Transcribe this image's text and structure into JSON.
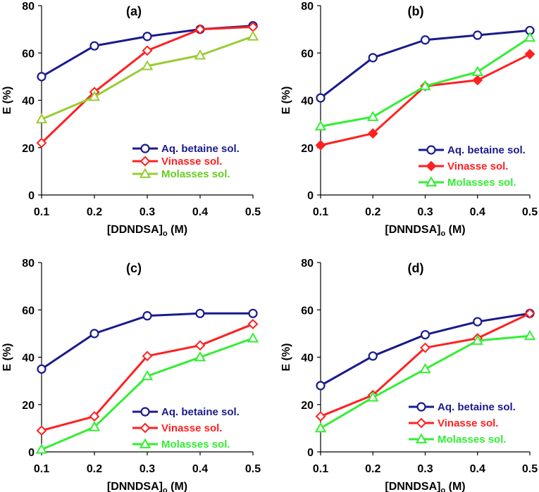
{
  "chart_data": [
    {
      "type": "line",
      "panel_label": "(a)",
      "xlabel_main": "[DDNDSA]",
      "xlabel_sub": "o",
      "xlabel_unit": " (M)",
      "ylabel": "E (%)",
      "x": [
        0.1,
        0.2,
        0.3,
        0.4,
        0.5
      ],
      "x_tick_labels": [
        "0.1",
        "0.2",
        "0.3",
        "0.4",
        "0.5"
      ],
      "xlim": [
        0.1,
        0.5
      ],
      "ylim": [
        0,
        80
      ],
      "y_ticks": [
        0,
        20,
        40,
        60,
        80
      ],
      "grid": false,
      "legend_position": "center-right",
      "series": [
        {
          "name": "Aq. betaine sol.",
          "color": "#1a1a8c",
          "text_color": "#1a1a8c",
          "marker": "circle",
          "values": [
            50,
            63,
            67,
            70,
            71.5
          ]
        },
        {
          "name": "Vinasse sol.",
          "color": "#ff2020",
          "text_color": "#ff2020",
          "marker": "diamond",
          "values": [
            22,
            43.5,
            61,
            70,
            71
          ]
        },
        {
          "name": "Molasses sol.",
          "color": "#99cc33",
          "text_color": "#66cc22",
          "marker": "triangle",
          "values": [
            32,
            41.5,
            54.5,
            59,
            67
          ]
        }
      ]
    },
    {
      "type": "line",
      "panel_label": "(b)",
      "xlabel_main": "[DNNDSA]",
      "xlabel_sub": "o",
      "xlabel_unit": " (M)",
      "ylabel": "E (%)",
      "x": [
        0.1,
        0.2,
        0.3,
        0.4,
        0.5
      ],
      "x_tick_labels": [
        "0.1",
        "0.2",
        "0.3",
        "0.4",
        "0.5"
      ],
      "xlim": [
        0.1,
        0.5
      ],
      "ylim": [
        0,
        80
      ],
      "y_ticks": [
        0,
        20,
        40,
        60,
        80
      ],
      "grid": false,
      "legend_position": "center-right",
      "series": [
        {
          "name": "Aq. betaine sol.",
          "color": "#1a1a8c",
          "text_color": "#1a1a8c",
          "marker": "circle",
          "values": [
            41,
            58,
            65.5,
            67.5,
            69.5
          ]
        },
        {
          "name": "Vinasse sol.",
          "color": "#ff2020",
          "text_color": "#ff2020",
          "marker": "diamond",
          "values": [
            21,
            26,
            46,
            48.5,
            59.5
          ]
        },
        {
          "name": "Molasses sol.",
          "color": "#33ee33",
          "text_color": "#33ee33",
          "marker": "triangle",
          "values": [
            29,
            33,
            46,
            52,
            66.5
          ]
        }
      ]
    },
    {
      "type": "line",
      "panel_label": "(c)",
      "xlabel_main": "[DNNDSA]",
      "xlabel_sub": "o",
      "xlabel_unit": " (M)",
      "ylabel": "E (%)",
      "x": [
        0.1,
        0.2,
        0.3,
        0.4,
        0.5
      ],
      "x_tick_labels": [
        "0.1",
        "0.2",
        "0.3",
        "0.4",
        "0.5"
      ],
      "xlim": [
        0.1,
        0.5
      ],
      "ylim": [
        0,
        80
      ],
      "y_ticks": [
        0,
        20,
        40,
        60,
        80
      ],
      "grid": false,
      "legend_position": "bottom-right",
      "series": [
        {
          "name": "Aq. betaine sol.",
          "color": "#1a1a8c",
          "text_color": "#1a1a8c",
          "marker": "circle",
          "values": [
            35,
            50,
            57.5,
            58.5,
            58.5
          ]
        },
        {
          "name": "Vinasse sol.",
          "color": "#ff2020",
          "text_color": "#ff2020",
          "marker": "diamond",
          "values": [
            9,
            15,
            40.5,
            45,
            54
          ]
        },
        {
          "name": "Molasses sol.",
          "color": "#33ee33",
          "text_color": "#33ee33",
          "marker": "triangle",
          "values": [
            1,
            10.5,
            32,
            40,
            48
          ]
        }
      ]
    },
    {
      "type": "line",
      "panel_label": "(d)",
      "xlabel_main": "[DNNDSA]",
      "xlabel_sub": "o",
      "xlabel_unit": " (M)",
      "ylabel": "E (%)",
      "x": [
        0.1,
        0.2,
        0.3,
        0.4,
        0.5
      ],
      "x_tick_labels": [
        "0.1",
        "0.2",
        "0.3",
        "0.4",
        "0.5"
      ],
      "xlim": [
        0.1,
        0.5
      ],
      "ylim": [
        0,
        80
      ],
      "y_ticks": [
        0,
        20,
        40,
        60,
        80
      ],
      "grid": false,
      "legend_position": "bottom-right",
      "series": [
        {
          "name": "Aq. betaine sol.",
          "color": "#1a1a8c",
          "text_color": "#1a1a8c",
          "marker": "circle",
          "values": [
            28,
            40.5,
            49.5,
            55,
            58.5
          ]
        },
        {
          "name": "Vinasse sol.",
          "color": "#ff2020",
          "text_color": "#ff2020",
          "marker": "diamond",
          "values": [
            15,
            24,
            44,
            48,
            58.5
          ]
        },
        {
          "name": "Molasses sol.",
          "color": "#33ee33",
          "text_color": "#33ee33",
          "marker": "triangle",
          "values": [
            10,
            23,
            35,
            47,
            49
          ]
        }
      ]
    }
  ]
}
